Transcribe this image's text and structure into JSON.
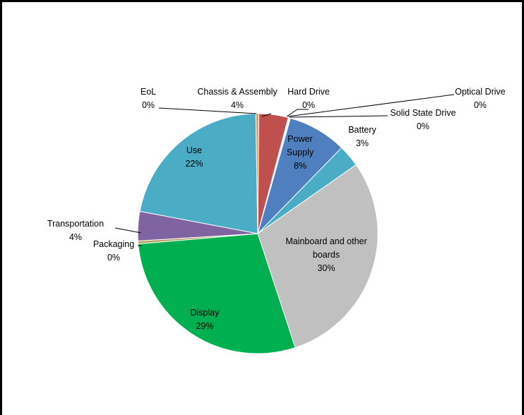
{
  "chart_data": {
    "type": "pie",
    "title": "",
    "slices": [
      {
        "label": "Chassis & Assembly",
        "value": 4,
        "pct_text": "4%",
        "color": "#C0504D"
      },
      {
        "label": "Hard Drive",
        "value": 0.1,
        "pct_text": "0%",
        "color": "#4F7FBE"
      },
      {
        "label": "Optical Drive",
        "value": 0.1,
        "pct_text": "0%",
        "color": "#9BBB59"
      },
      {
        "label": "Solid State Drive",
        "value": 0.1,
        "pct_text": "0%",
        "color": "#8064A2"
      },
      {
        "label": "Power Supply",
        "value": 8,
        "pct_text": "8%",
        "color": "#4F7FBE"
      },
      {
        "label": "Battery",
        "value": 3,
        "pct_text": "3%",
        "color": "#4BACC6"
      },
      {
        "label": "Mainboard and other boards",
        "value": 30,
        "pct_text": "30%",
        "color": "#C0C0C0"
      },
      {
        "label": "Display",
        "value": 29,
        "pct_text": "29%",
        "color": "#00B050"
      },
      {
        "label": "Packaging",
        "value": 0.4,
        "pct_text": "0%",
        "color": "#B5A264"
      },
      {
        "label": "Transportation",
        "value": 4,
        "pct_text": "4%",
        "color": "#8064A2"
      },
      {
        "label": "Use",
        "value": 22,
        "pct_text": "22%",
        "color": "#4BACC6"
      },
      {
        "label": "EoL",
        "value": 0.4,
        "pct_text": "0%",
        "color": "#F79646"
      }
    ]
  }
}
